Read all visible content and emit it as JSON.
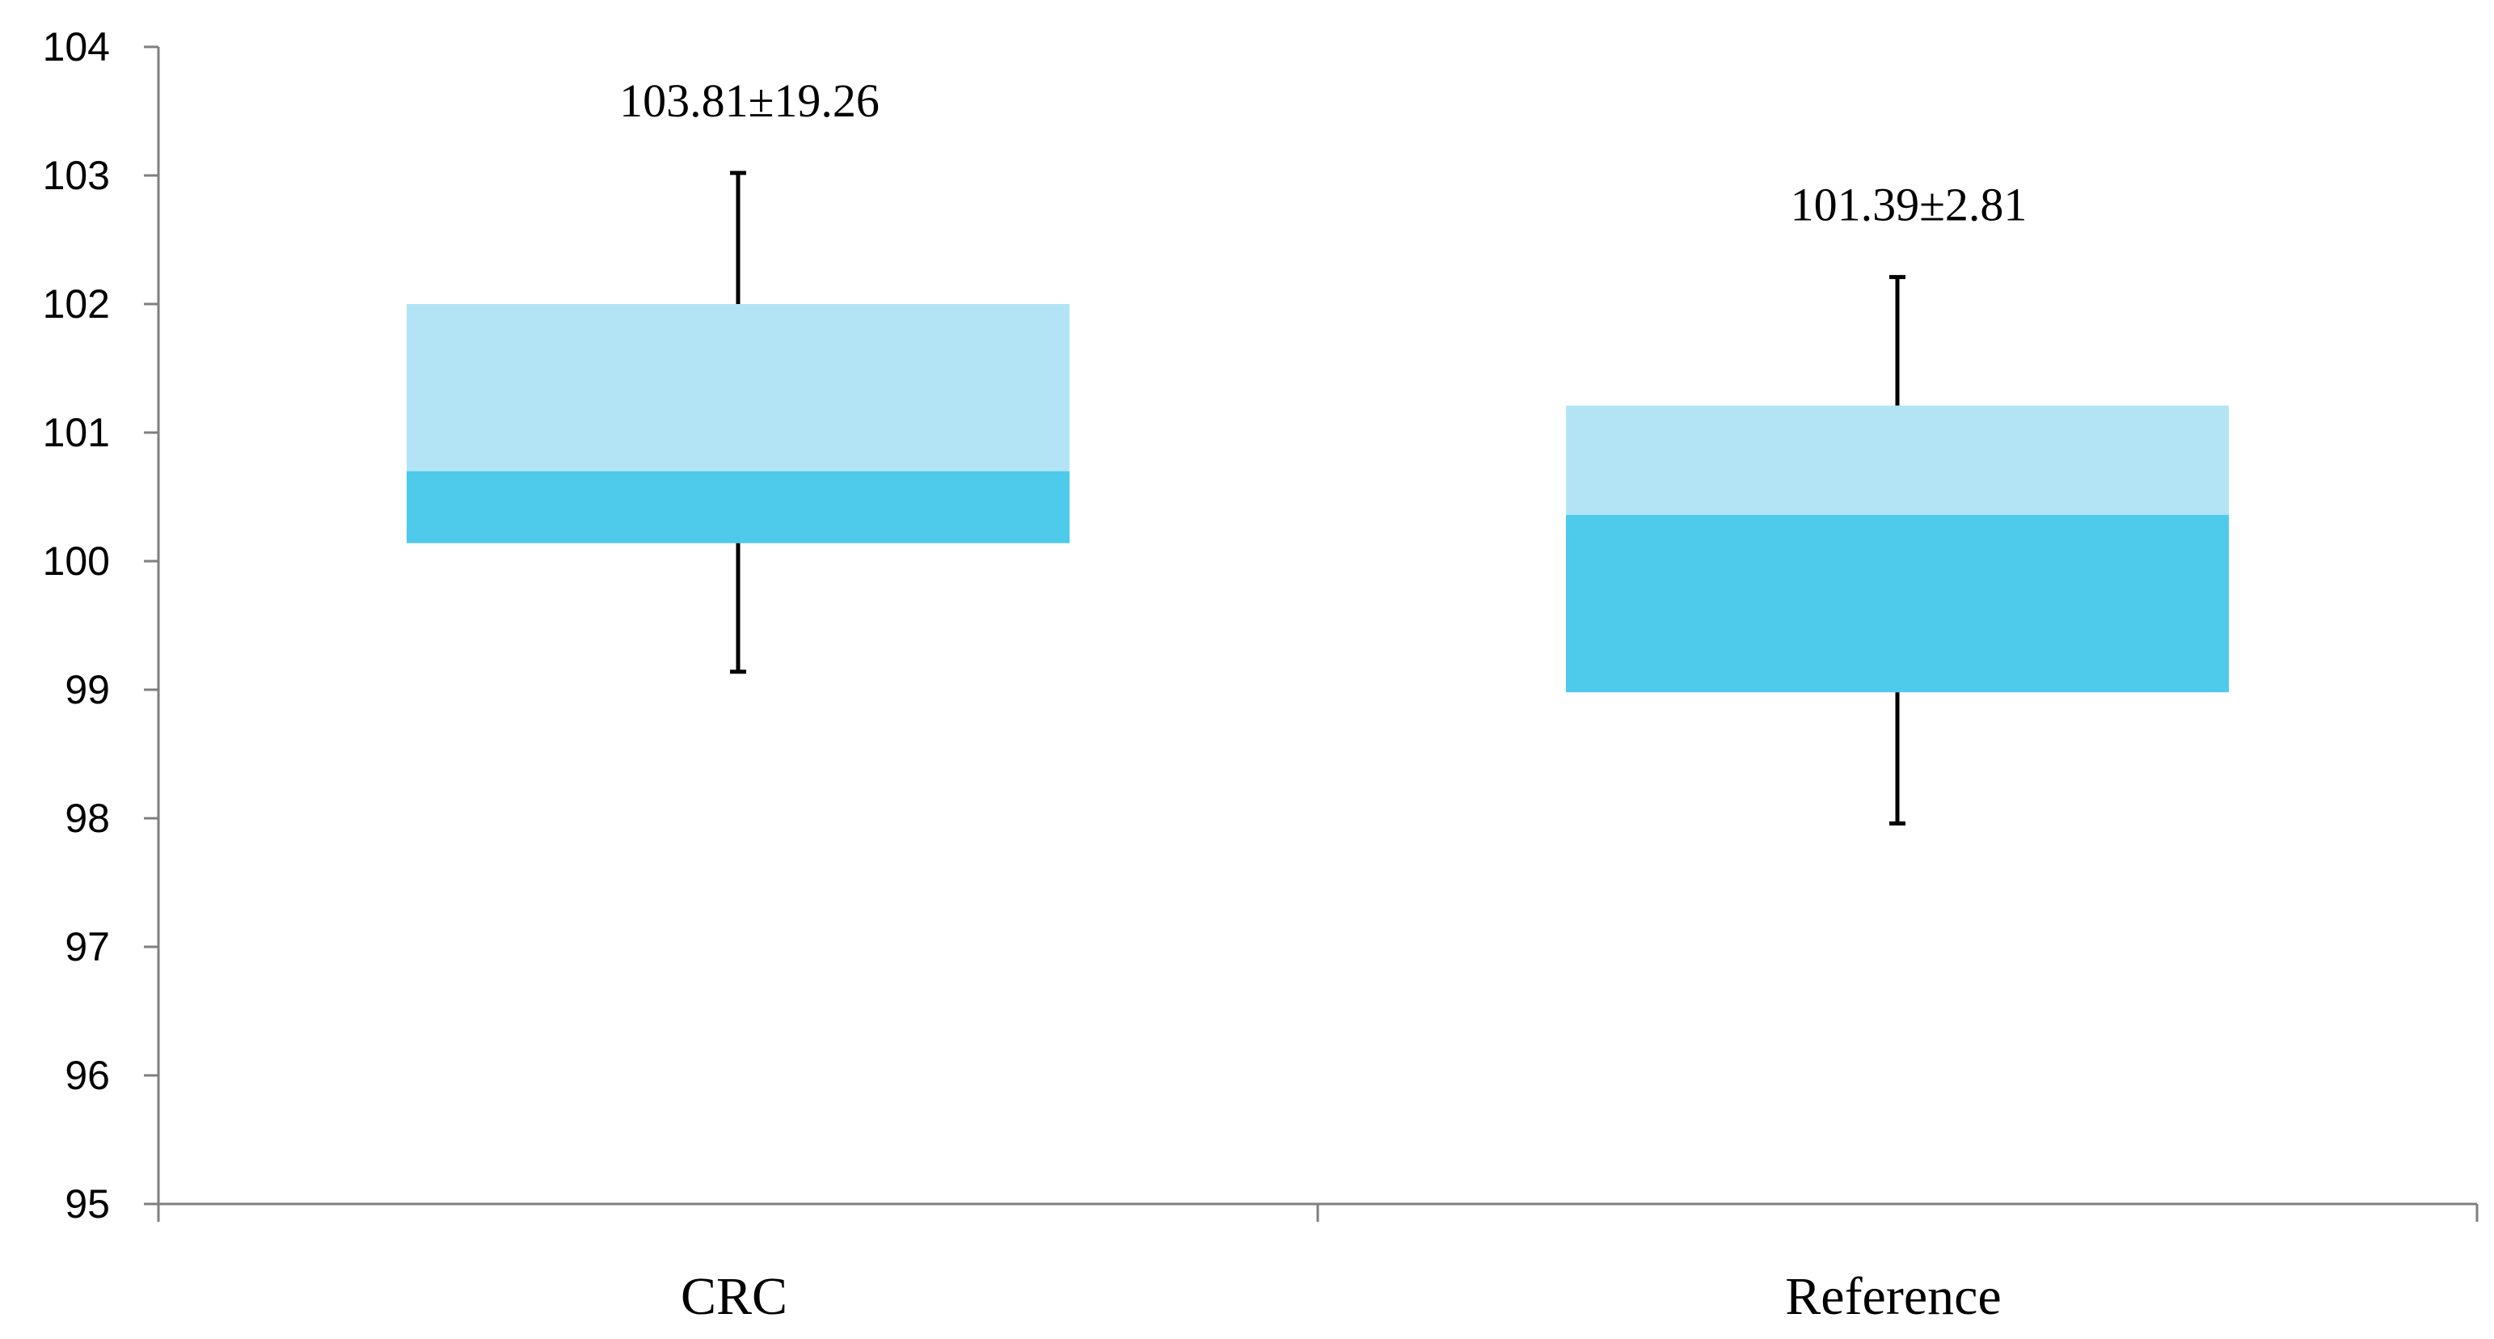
{
  "chart_data": {
    "type": "box",
    "categories": [
      "CRC",
      "Reference"
    ],
    "yticks": [
      95,
      96,
      97,
      98,
      99,
      100,
      101,
      102,
      103,
      104
    ],
    "ylim": [
      95,
      104
    ],
    "grid": false,
    "colors": {
      "upper": "#b3e4f5",
      "lower": "#4ecaeb",
      "whisker": "#000000",
      "axis": "#7f7f7f"
    },
    "boxes": [
      {
        "category": "CRC",
        "min": 99.14,
        "q1": 100.14,
        "median": 100.7,
        "q3": 102.0,
        "max": 103.02,
        "annotation": "103.81±19.26"
      },
      {
        "category": "Reference",
        "min": 97.96,
        "q1": 98.98,
        "median": 100.36,
        "q3": 101.21,
        "max": 102.21,
        "annotation": "101.39±2.81"
      }
    ]
  }
}
